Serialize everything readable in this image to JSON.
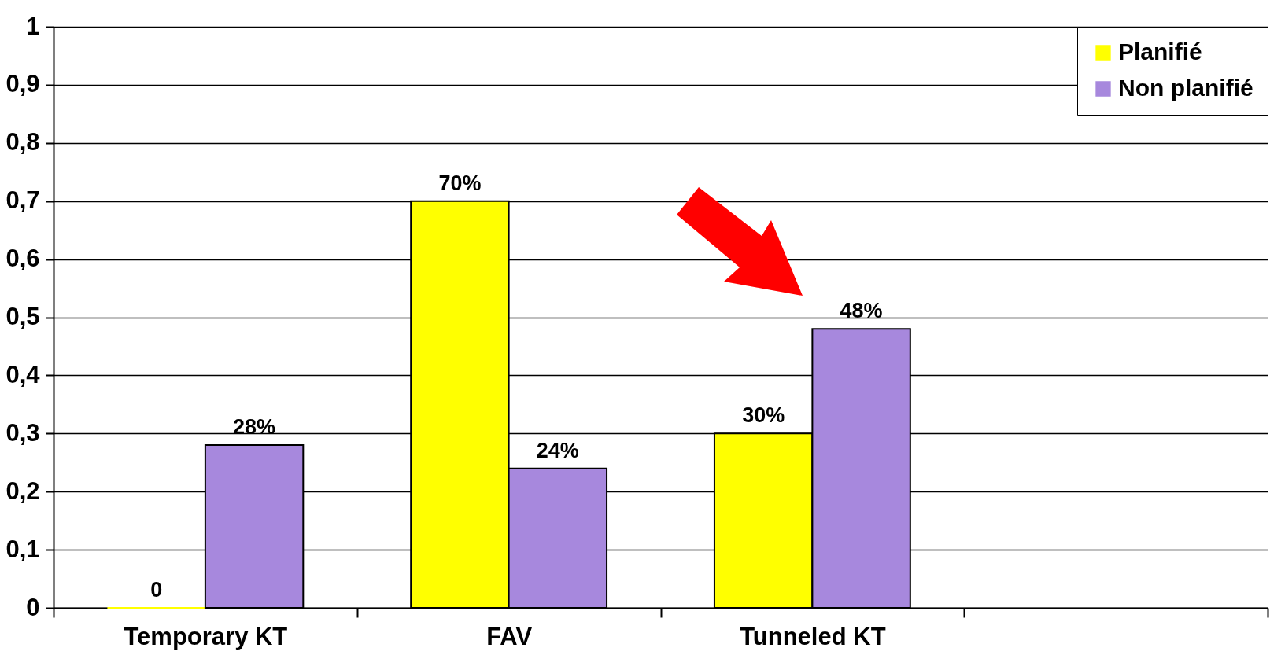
{
  "chart_data": {
    "type": "bar",
    "categories": [
      "Temporary KT",
      "FAV",
      "Tunneled KT",
      null
    ],
    "series": [
      {
        "name": "Planifié",
        "color": "#ffff00",
        "values": [
          0,
          0.7,
          0.3,
          null
        ],
        "value_labels": [
          "0",
          "70%",
          "30%",
          null
        ]
      },
      {
        "name": "Non planifié",
        "color": "#a788dd",
        "values": [
          0.28,
          0.24,
          0.48,
          null
        ],
        "value_labels": [
          "28%",
          "24%",
          "48%",
          null
        ]
      }
    ],
    "ylim": [
      0,
      1
    ],
    "yticks": [
      0,
      {
        "value": 0.1,
        "label": "0,1"
      },
      {
        "value": 0.2,
        "label": "0,2"
      },
      {
        "value": 0.3,
        "label": "0,3"
      },
      {
        "value": 0.4,
        "label": "0,4"
      },
      {
        "value": 0.5,
        "label": "0,5"
      },
      {
        "value": 0.6,
        "label": "0,6"
      },
      {
        "value": 0.7,
        "label": "0,7"
      },
      {
        "value": 0.8,
        "label": "0,8"
      },
      {
        "value": 0.9,
        "label": "0,9"
      },
      1
    ],
    "grid": "y",
    "legend": "top right"
  }
}
